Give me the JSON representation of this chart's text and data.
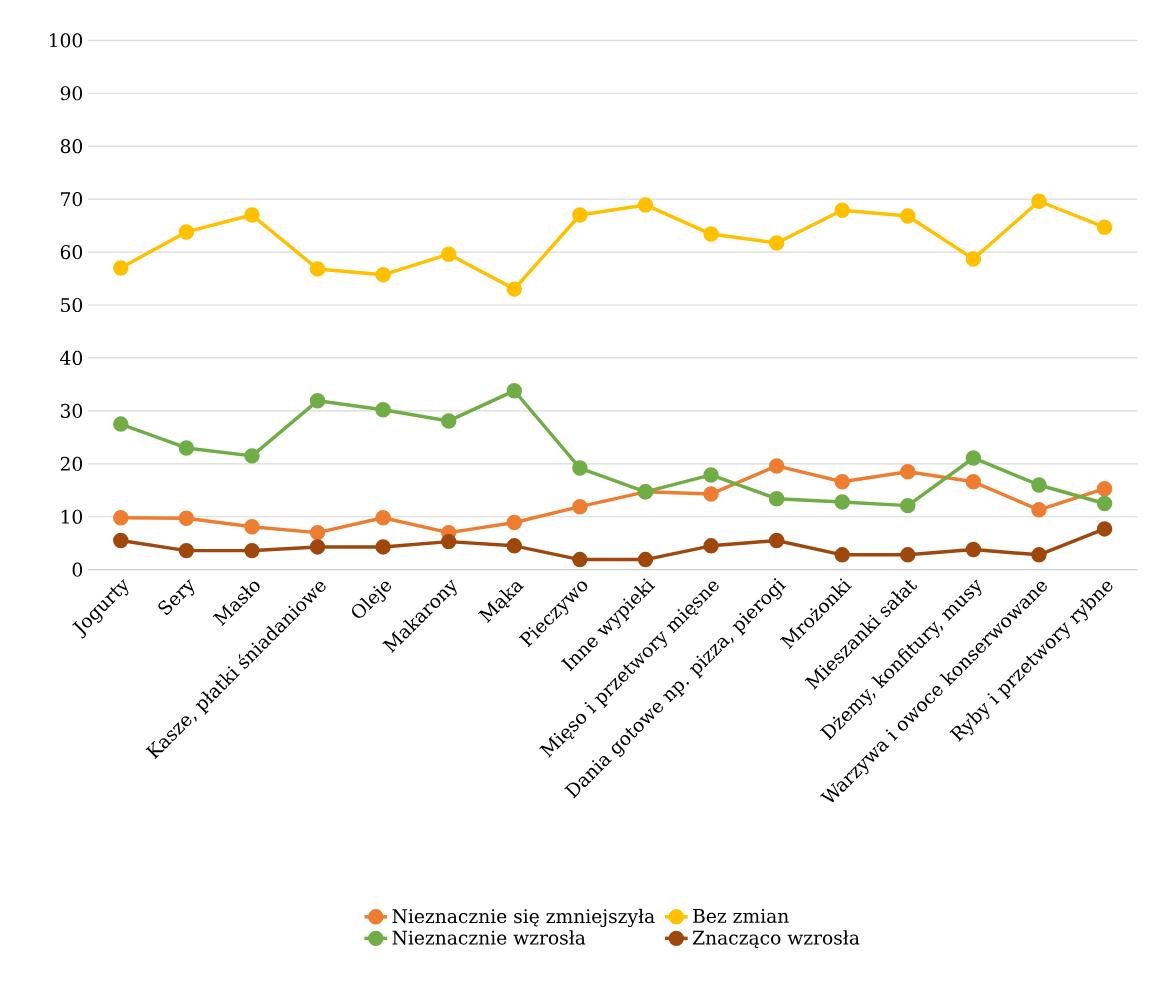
{
  "chart_data": {
    "type": "line",
    "categories": [
      "Jogurty",
      "Sery",
      "Masło",
      "Kasze, płatki śniadaniowe",
      "Oleje",
      "Makarony",
      "Mąka",
      "Pieczywo",
      "Inne wypieki",
      "Mięso i przetwory mięsne",
      "Dania gotowe np. pizza, pierogi",
      "Mrożonki",
      "Mieszanki sałat",
      "Dżemy, konfitury, musy",
      "Warzywa i owoce konserwowane",
      "Ryby i przetwory rybne"
    ],
    "series": [
      {
        "name": "Nieznacznie się zmniejszyła",
        "color": "#ed7d31",
        "values": [
          9.8,
          9.7,
          8.1,
          7.0,
          9.8,
          7.0,
          8.9,
          11.9,
          14.7,
          14.3,
          19.6,
          16.6,
          18.5,
          16.6,
          11.3,
          15.3
        ]
      },
      {
        "name": "Bez zmian",
        "color": "#ffc000",
        "values": [
          57.0,
          63.8,
          67.0,
          56.8,
          55.7,
          59.6,
          53.0,
          67.0,
          68.9,
          63.4,
          61.7,
          67.9,
          66.8,
          58.7,
          69.6,
          64.7
        ]
      },
      {
        "name": "Nieznacznie wzrosła",
        "color": "#70ad47",
        "values": [
          27.5,
          23.0,
          21.5,
          31.9,
          30.2,
          28.1,
          33.8,
          19.2,
          14.7,
          17.9,
          13.4,
          12.8,
          12.1,
          21.1,
          16.0,
          12.5
        ]
      },
      {
        "name": "Znacząco wzrosła",
        "color": "#9e480e",
        "values": [
          5.5,
          3.6,
          3.6,
          4.3,
          4.3,
          5.3,
          4.5,
          1.9,
          1.9,
          4.5,
          5.5,
          2.8,
          2.8,
          3.8,
          2.8,
          7.7
        ]
      }
    ],
    "ylim": [
      0,
      100
    ],
    "yticks": [
      0,
      10,
      20,
      30,
      40,
      50,
      60,
      70,
      80,
      90,
      100
    ],
    "grid": "y",
    "legend": "bottom",
    "marker": "circle",
    "line_style": "solid"
  }
}
